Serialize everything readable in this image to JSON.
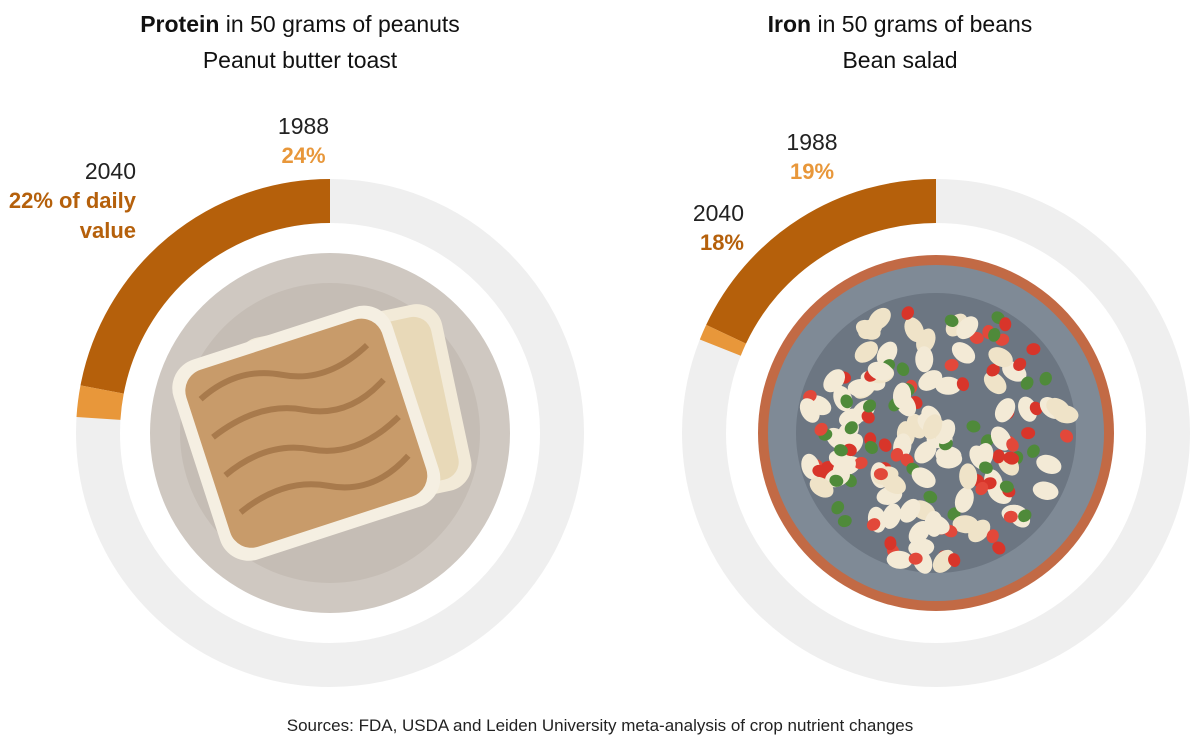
{
  "chart_data": [
    {
      "type": "donut",
      "title_bold": "Protein",
      "title_rest": " in 50 grams of peanuts",
      "subtitle": "Peanut butter toast",
      "unit": "% of daily value",
      "series": [
        {
          "name": "2040",
          "value_label": "22% of daily value",
          "value": 22,
          "color": "#b5600b"
        },
        {
          "name": "1988",
          "value_label": "24%",
          "value": 24,
          "color": "#e8973a"
        }
      ],
      "track_color": "#efefef",
      "image": "peanut-butter-toast-on-plate"
    },
    {
      "type": "donut",
      "title_bold": "Iron",
      "title_rest": " in 50 grams of beans",
      "subtitle": "Bean salad",
      "unit": "% of daily value",
      "series": [
        {
          "name": "2040",
          "value_label": "18%",
          "value": 18,
          "color": "#b5600b"
        },
        {
          "name": "1988",
          "value_label": "19%",
          "value": 19,
          "color": "#e8973a"
        }
      ],
      "track_color": "#efefef",
      "image": "bean-salad-in-bowl"
    }
  ],
  "source": "Sources: FDA, USDA and Leiden University meta-analysis of crop nutrient changes",
  "colors": {
    "dark_orange": "#b5600b",
    "light_orange": "#e8973a",
    "track": "#efefef"
  }
}
